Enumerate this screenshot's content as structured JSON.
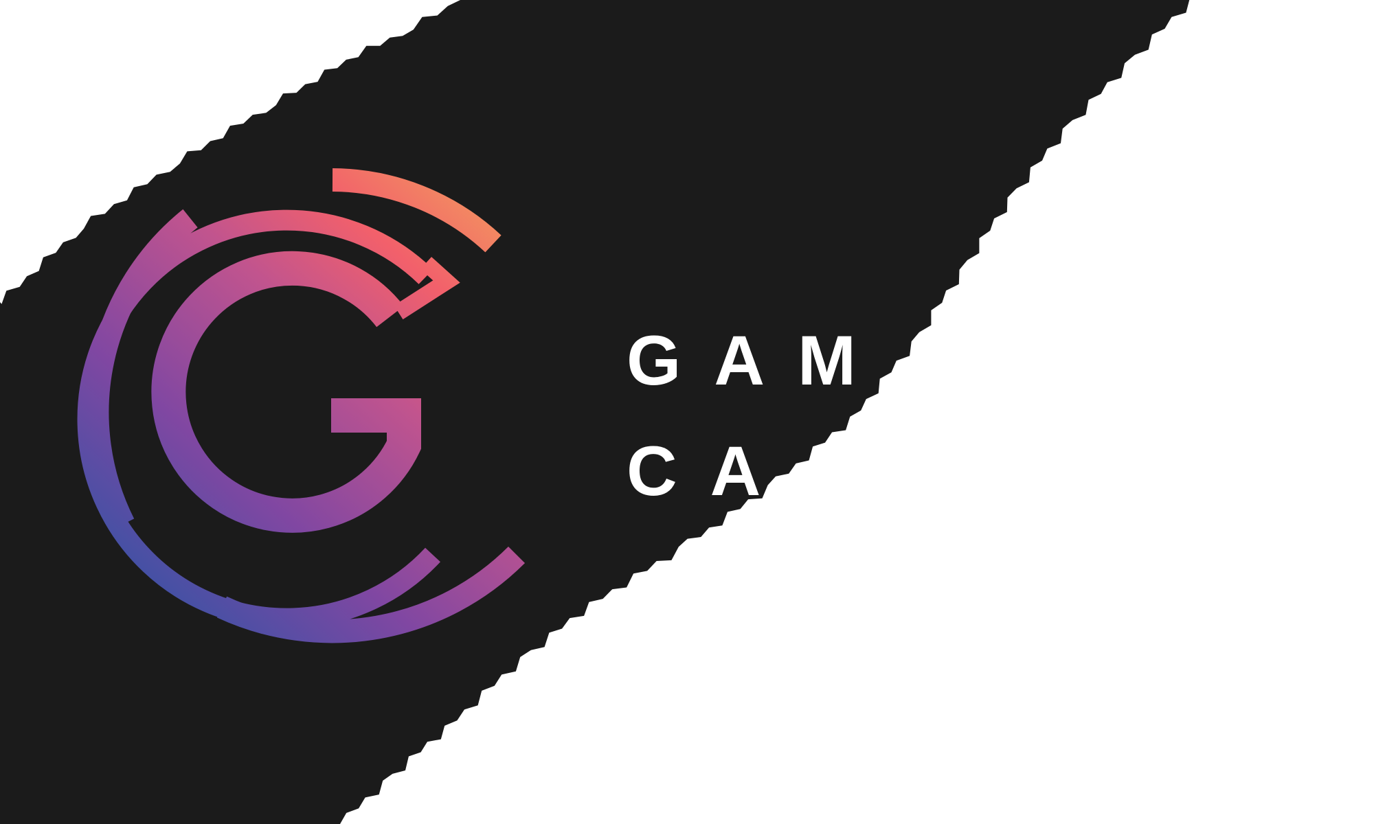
{
  "logo": {
    "name": "logo-emblem",
    "gradient_colors": {
      "orange": "#f39a5e",
      "coral": "#f2606b",
      "magenta": "#c1548e",
      "purple": "#8047a2",
      "blue": "#2456a6"
    }
  },
  "wordmark": {
    "line1": "GAM",
    "line2": "CA"
  },
  "colors": {
    "background_dark": "#1b1b1b",
    "paper_white": "#ffffff",
    "text_white": "#ffffff"
  }
}
